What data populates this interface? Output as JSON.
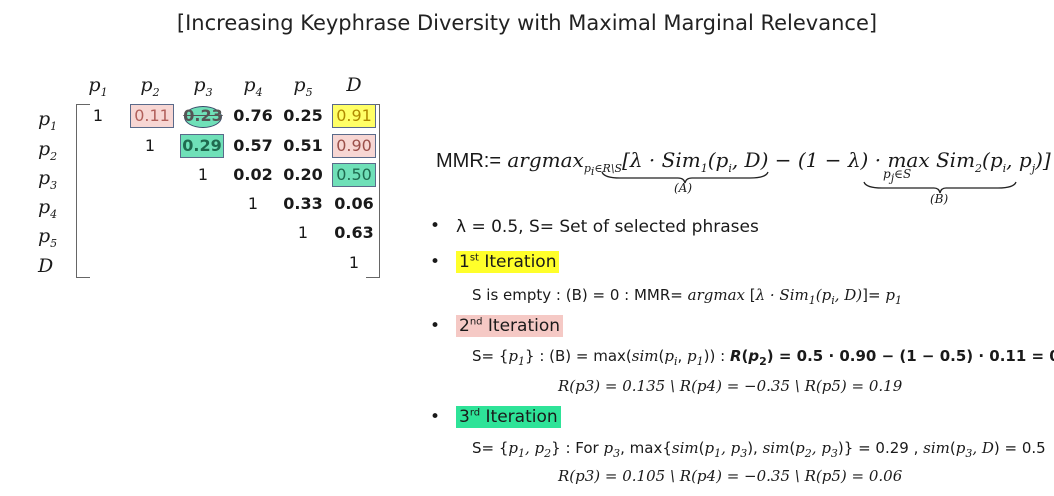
{
  "title": "[Increasing Keyphrase Diversity with Maximal Marginal Relevance]",
  "matrix": {
    "col_headers": [
      "p1",
      "p2",
      "p3",
      "p4",
      "p5",
      "D"
    ],
    "row_headers": [
      "p1",
      "p2",
      "p3",
      "p4",
      "p5",
      "D"
    ],
    "rows": [
      [
        "1",
        "0.11",
        "0.23",
        "0.76",
        "0.25",
        "0.91"
      ],
      [
        "",
        "1",
        "0.29",
        "0.57",
        "0.51",
        "0.90"
      ],
      [
        "",
        "",
        "1",
        "0.02",
        "0.20",
        "0.50"
      ],
      [
        "",
        "",
        "",
        "1",
        "0.33",
        "0.06"
      ],
      [
        "",
        "",
        "",
        "",
        "1",
        "0.63"
      ],
      [
        "",
        "",
        "",
        "",
        "",
        "1"
      ]
    ],
    "colors": {
      "yellow": "#ffff66",
      "pink": "#f7d6d3",
      "green": "#6fe0b8",
      "border": "#5a6a8a"
    }
  },
  "formula": {
    "label_a": "(A)",
    "label_b": "(B)"
  },
  "bullets": {
    "b1": "λ = 0.5, S= Set of selected phrases",
    "it1_label": "1st Iteration",
    "it1_text": "S is empty : (B) = 0 : MMR=",
    "it2_label": "2nd Iteration",
    "it2_line2": "R(p3) = 0.135 \\ R(p4) = −0.35 \\ R(p5) = 0.19",
    "it3_label": "3rd Iteration",
    "it3_line2": "R(p3) = 0.105 \\ R(p4) = −0.35 \\ R(p5) = 0.06"
  }
}
